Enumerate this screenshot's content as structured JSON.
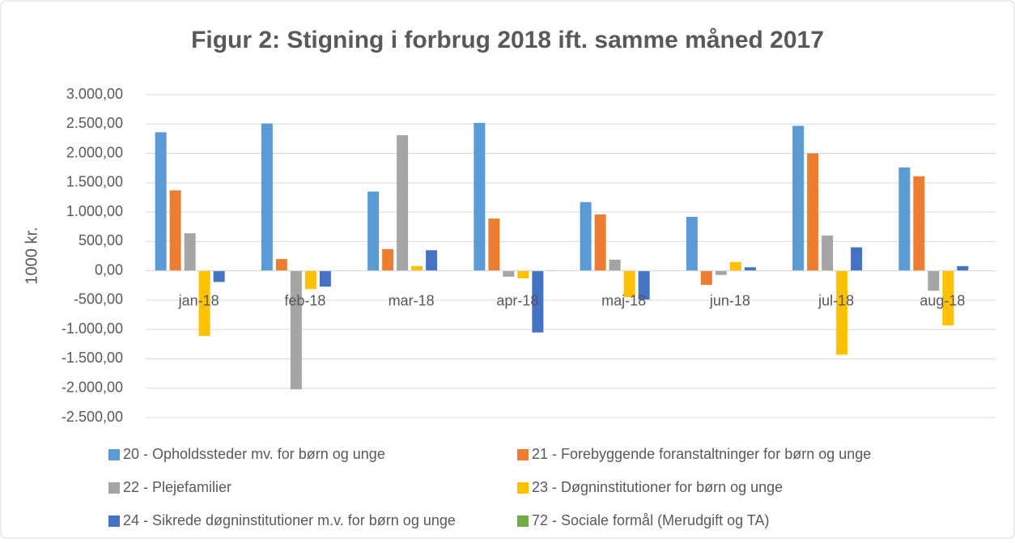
{
  "chart_data": {
    "type": "bar",
    "title": "Figur 2: Stigning i forbrug 2018 ift. samme måned 2017",
    "y_label": "1000 kr.",
    "categories": [
      "jan-18",
      "feb-18",
      "mar-18",
      "apr-18",
      "maj-18",
      "jun-18",
      "jul-18",
      "aug-18"
    ],
    "series": [
      {
        "name": "20 - Opholdssteder mv. for børn og unge",
        "color": "#5b9bd5",
        "values": [
          2360,
          2510,
          1350,
          2520,
          1170,
          920,
          2470,
          1760
        ]
      },
      {
        "name": "21 - Forebyggende foranstaltninger for børn og unge",
        "color": "#ed7d31",
        "values": [
          1370,
          200,
          370,
          890,
          960,
          -240,
          2000,
          1610
        ]
      },
      {
        "name": "22 - Plejefamilier",
        "color": "#a5a5a5",
        "values": [
          640,
          -2020,
          2310,
          -100,
          190,
          -70,
          600,
          -340
        ]
      },
      {
        "name": "23 - Døgninstitutioner for børn og unge",
        "color": "#ffc000",
        "values": [
          -1110,
          -310,
          80,
          -130,
          -450,
          150,
          -1430,
          -930
        ]
      },
      {
        "name": "24 - Sikrede døgninstitutioner m.v. for børn og unge",
        "color": "#4472c4",
        "values": [
          -190,
          -270,
          350,
          -1050,
          -490,
          60,
          400,
          80
        ]
      },
      {
        "name": "72 - Sociale formål (Merudgift og TA)",
        "color": "#70ad47",
        "values": [
          0,
          0,
          0,
          10,
          0,
          0,
          0,
          0
        ]
      }
    ],
    "ylim": [
      -2500,
      3000
    ],
    "yticks": [
      {
        "value": -2500,
        "label": "-2.500,00"
      },
      {
        "value": -2000,
        "label": "-2.000,00"
      },
      {
        "value": -1500,
        "label": "-1.500,00"
      },
      {
        "value": -1000,
        "label": "-1.000,00"
      },
      {
        "value": -500,
        "label": "-500,00"
      },
      {
        "value": 0,
        "label": "0,00"
      },
      {
        "value": 500,
        "label": "500,00"
      },
      {
        "value": 1000,
        "label": "1.000,00"
      },
      {
        "value": 1500,
        "label": "1.500,00"
      },
      {
        "value": 2000,
        "label": "2.000,00"
      },
      {
        "value": 2500,
        "label": "2.500,00"
      },
      {
        "value": 3000,
        "label": "3.000,00"
      }
    ],
    "grid": true,
    "legend": "bottom"
  }
}
